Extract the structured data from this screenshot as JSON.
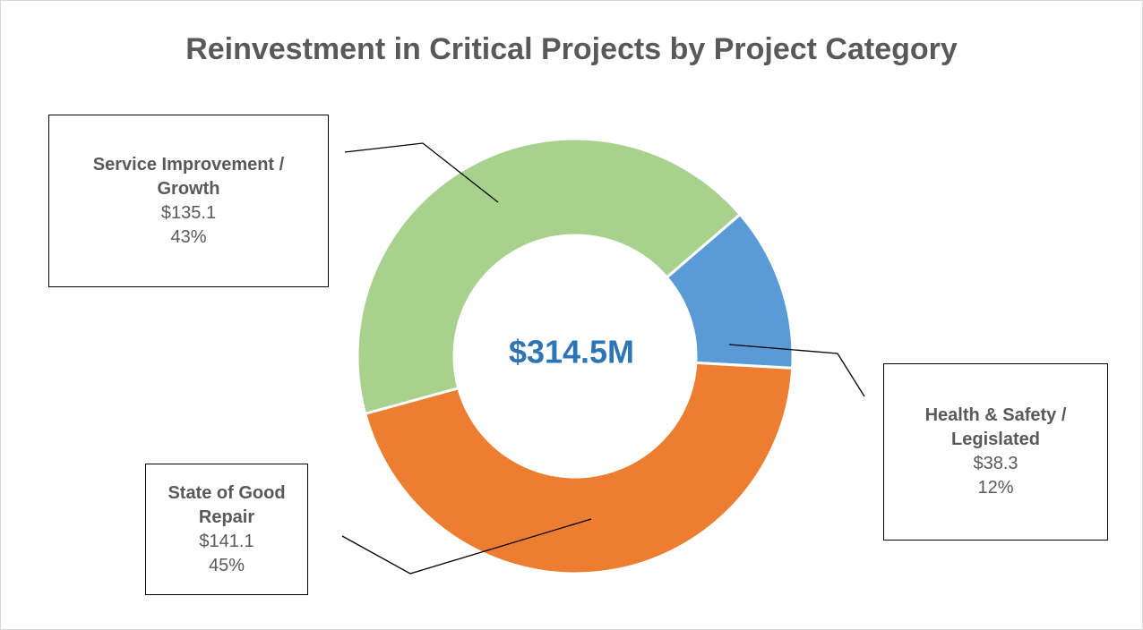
{
  "chart_data": {
    "type": "donut",
    "title": "Reinvestment in Critical Projects by Project Category",
    "center_label": "$314.5M",
    "categories": [
      "Health & Safety / Legislated",
      "State of Good Repair",
      "Service Improvement / Growth"
    ],
    "values": [
      38.3,
      141.1,
      135.1
    ],
    "value_labels": [
      "$38.3",
      "$141.1",
      "$135.1"
    ],
    "percents": [
      12,
      45,
      43
    ],
    "percent_labels": [
      "12%",
      "45%",
      "43%"
    ],
    "colors": [
      "#5b9bd5",
      "#ed7d31",
      "#a9d18e"
    ]
  }
}
